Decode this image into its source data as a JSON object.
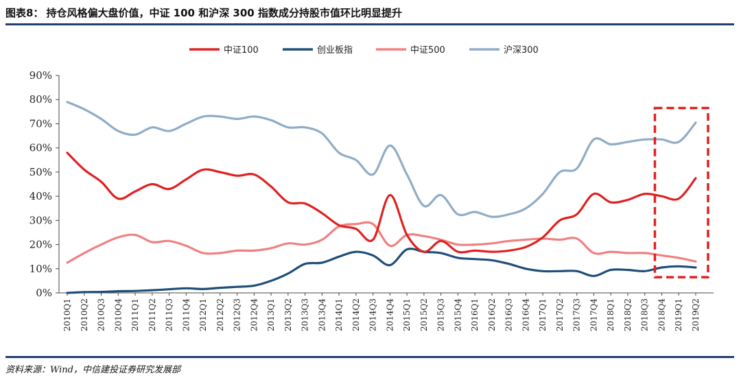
{
  "header": {
    "figure_label": "图表8：",
    "title": "持仓风格偏大盘价值，中证 100 和沪深 300 指数成分持股市值环比明显提升"
  },
  "footer": {
    "source": "资料来源：Wind，中信建投证券研究发展部"
  },
  "chart_data": {
    "type": "line",
    "ylim": [
      0,
      90
    ],
    "yticks": [
      0,
      10,
      20,
      30,
      40,
      50,
      60,
      70,
      80,
      90
    ],
    "ytick_labels": [
      "0%",
      "10%",
      "20%",
      "30%",
      "40%",
      "50%",
      "60%",
      "70%",
      "80%",
      "90%"
    ],
    "x": [
      "2010Q1",
      "2010Q2",
      "2010Q3",
      "2010Q4",
      "2011Q1",
      "2011Q2",
      "2011Q3",
      "2011Q4",
      "2012Q1",
      "2012Q2",
      "2012Q3",
      "2012Q4",
      "2013Q1",
      "2013Q2",
      "2013Q3",
      "2013Q4",
      "2014Q1",
      "2014Q2",
      "2014Q3",
      "2014Q4",
      "2015Q1",
      "2015Q2",
      "2015Q3",
      "2015Q4",
      "2016Q1",
      "2016Q2",
      "2016Q3",
      "2016Q4",
      "2017Q1",
      "2017Q2",
      "2017Q3",
      "2017Q4",
      "2018Q1",
      "2018Q2",
      "2018Q3",
      "2018Q4",
      "2019Q1",
      "2019Q2"
    ],
    "legend_position": "top-center",
    "grid": false,
    "annotation": "red dashed box highlighting 2018Q4–2019Q2",
    "series": [
      {
        "name": "中证100",
        "color": "#e02020",
        "values": [
          58,
          51,
          46,
          39,
          42,
          45,
          43,
          47,
          51,
          50,
          48.5,
          49,
          44,
          37.5,
          37,
          33,
          28,
          26.5,
          22,
          40.5,
          24,
          17,
          21.5,
          17,
          17.5,
          17,
          17.5,
          19,
          23,
          30,
          32.5,
          41,
          37.5,
          38.5,
          41,
          40,
          39,
          47.5
        ]
      },
      {
        "name": "创业板指",
        "color": "#1f4e79",
        "values": [
          0,
          0.3,
          0.4,
          0.7,
          0.8,
          1.1,
          1.5,
          1.9,
          1.6,
          2.1,
          2.5,
          3,
          5,
          8,
          12,
          12.5,
          15,
          17,
          15.5,
          11.5,
          18,
          17,
          16.5,
          14.5,
          14,
          13.5,
          12,
          10,
          9,
          9,
          9,
          7,
          9.5,
          9.5,
          9,
          10.5,
          11,
          10.5
        ]
      },
      {
        "name": "中证500",
        "color": "#f08080",
        "values": [
          12.5,
          16.5,
          20,
          23,
          24,
          21,
          21.5,
          19.5,
          16.5,
          16.5,
          17.5,
          17.5,
          18.5,
          20.5,
          20,
          22,
          27.5,
          28.5,
          28.5,
          19.5,
          24,
          23.5,
          22,
          20,
          20,
          20.5,
          21.5,
          22,
          22.5,
          22,
          22.5,
          16.5,
          17,
          16.5,
          16.5,
          15.5,
          14.5,
          13
        ]
      },
      {
        "name": "沪深300",
        "color": "#8facc7",
        "values": [
          79,
          76,
          72,
          67,
          65.5,
          68.5,
          67,
          70,
          73,
          73,
          72,
          73,
          71.5,
          68.5,
          68.5,
          66,
          58,
          55,
          49,
          61,
          49,
          36,
          40.5,
          32.5,
          33.5,
          31.5,
          32.5,
          35,
          41,
          50,
          51.5,
          63.5,
          61.5,
          62.5,
          63.5,
          63.5,
          62.5,
          70.5
        ]
      }
    ]
  }
}
